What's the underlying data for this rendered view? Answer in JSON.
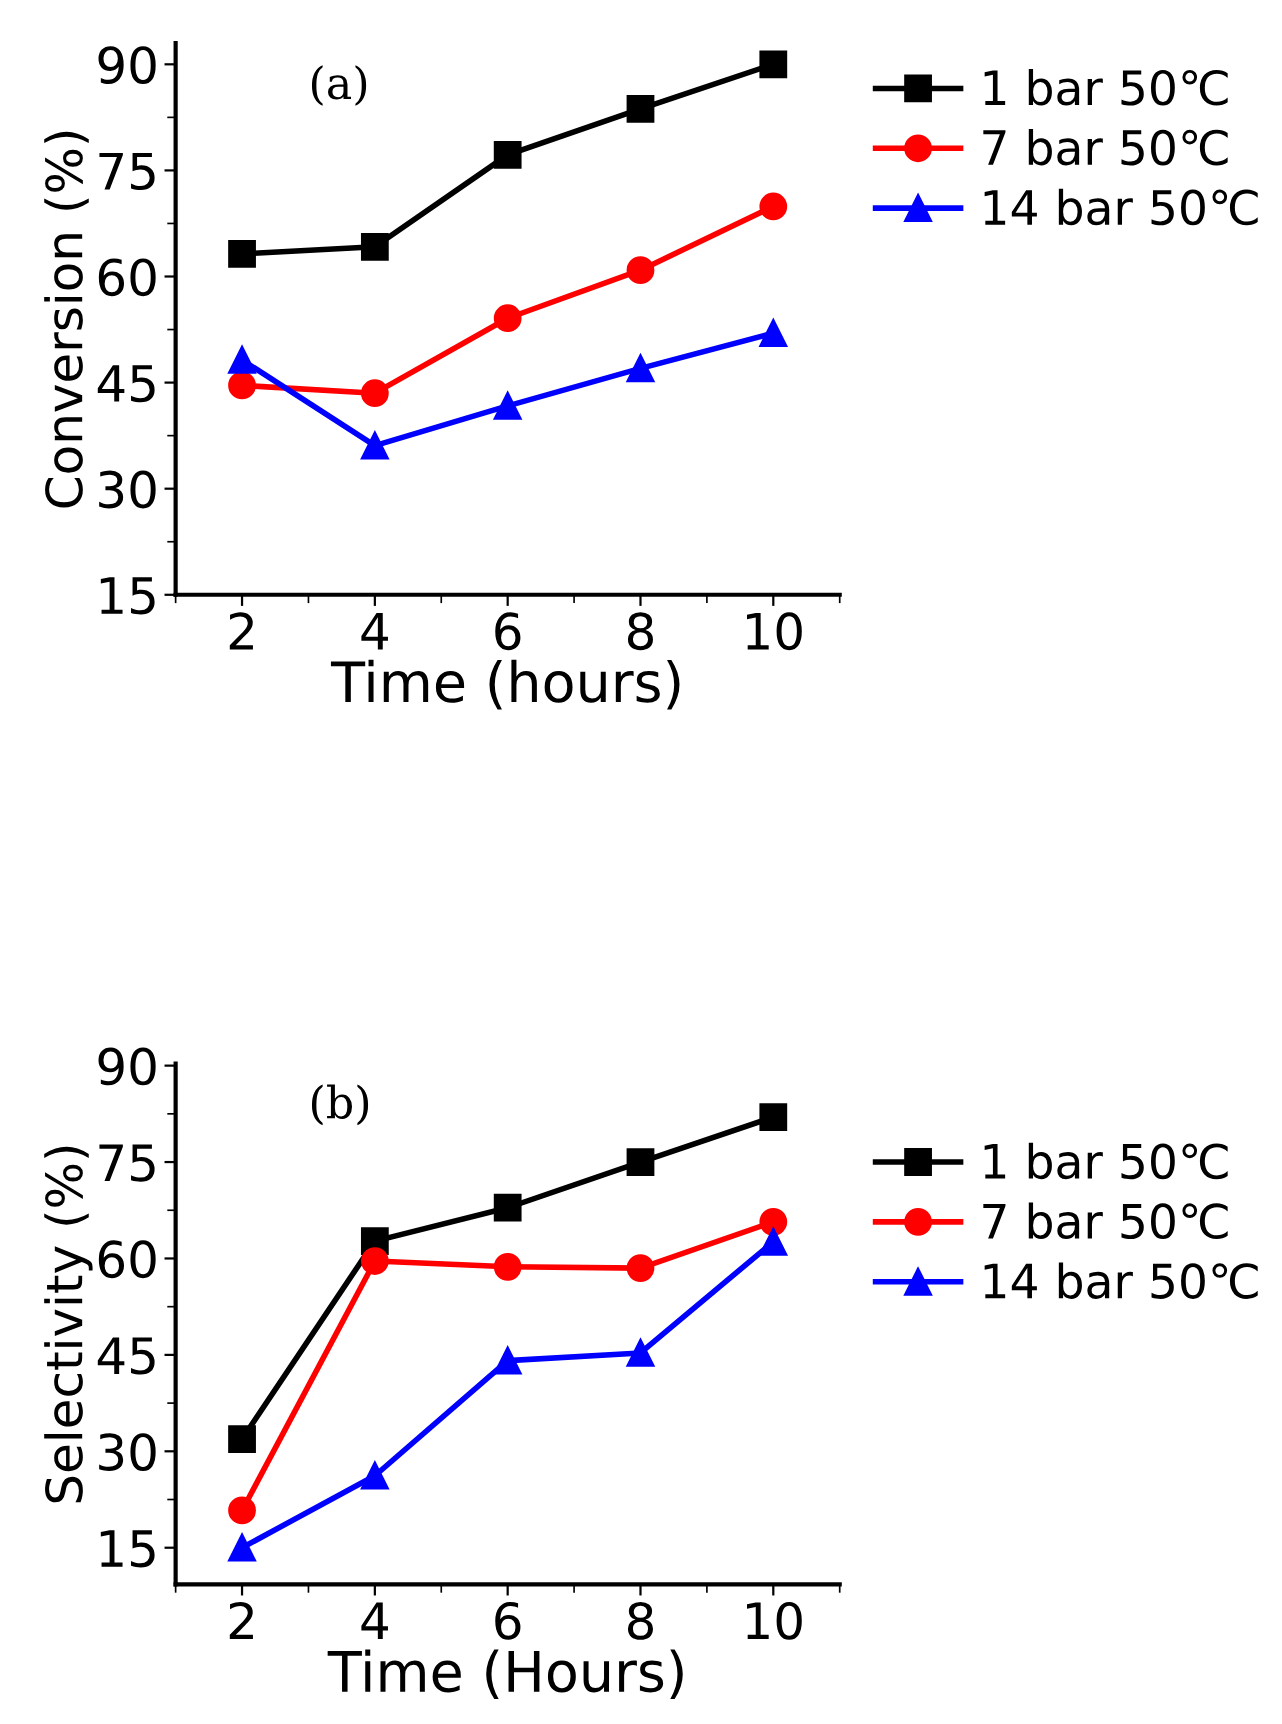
{
  "chart_data": [
    {
      "type": "line",
      "xlabel": "Time (hours)",
      "ylabel": "Conversion (%)",
      "annotations": [
        "(a)"
      ],
      "x": [
        2,
        4,
        6,
        8,
        10
      ],
      "xlim": [
        1,
        11
      ],
      "ylim": [
        15,
        93
      ],
      "xticks": [
        2,
        4,
        6,
        8,
        10
      ],
      "yticks": [
        15,
        30,
        45,
        60,
        75,
        90
      ],
      "legend": "top right",
      "grid": false,
      "series": [
        {
          "name": "1 bar 50℃",
          "color": "#000000",
          "marker": "square",
          "values": [
            63.2,
            64.2,
            77.2,
            83.7,
            90.0
          ]
        },
        {
          "name": "7 bar 50℃",
          "color": "#ff0000",
          "marker": "circle",
          "values": [
            44.6,
            43.5,
            54.1,
            60.9,
            69.9
          ]
        },
        {
          "name": "14 bar 50℃",
          "color": "#0000ff",
          "marker": "triangle",
          "values": [
            48.2,
            36.1,
            41.7,
            47.0,
            52.0
          ]
        }
      ]
    },
    {
      "type": "line",
      "xlabel": "Time (Hours)",
      "ylabel": "Selectivity (%)",
      "annotations": [
        "(b)"
      ],
      "x": [
        2,
        4,
        6,
        8,
        10
      ],
      "xlim": [
        1,
        11
      ],
      "ylim": [
        9.3,
        90.3
      ],
      "xticks": [
        2,
        4,
        6,
        8,
        10
      ],
      "yticks": [
        15,
        30,
        45,
        60,
        75,
        90
      ],
      "legend": "top right",
      "grid": false,
      "series": [
        {
          "name": "1 bar 50℃",
          "color": "#000000",
          "marker": "square",
          "values": [
            31.9,
            62.7,
            67.9,
            75.0,
            82.0
          ]
        },
        {
          "name": "7 bar 50℃",
          "color": "#ff0000",
          "marker": "circle",
          "values": [
            20.8,
            59.6,
            58.7,
            58.5,
            65.7
          ]
        },
        {
          "name": "14 bar 50℃",
          "color": "#0000ff",
          "marker": "triangle",
          "values": [
            15.0,
            26.2,
            44.1,
            45.3,
            62.6
          ]
        }
      ]
    }
  ]
}
